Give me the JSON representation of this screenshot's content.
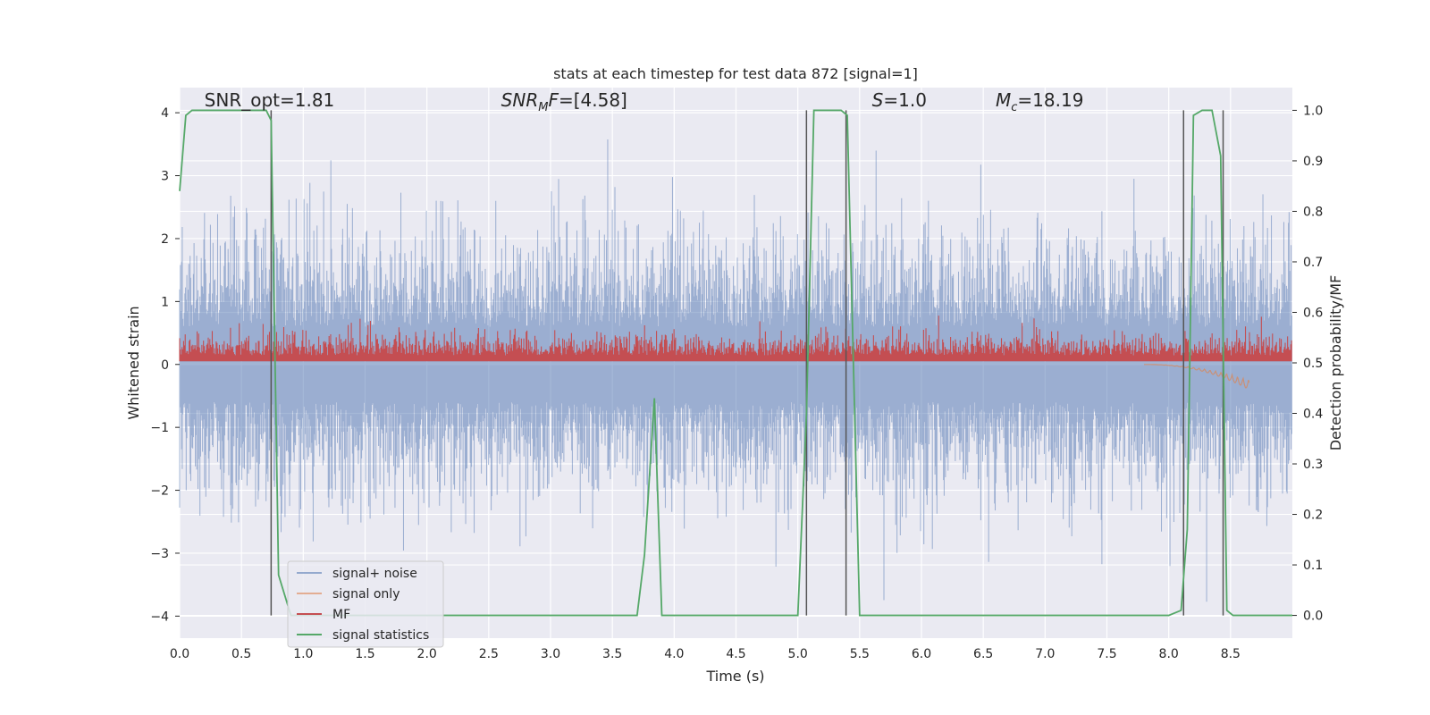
{
  "chart_data": {
    "type": "line",
    "title": "stats at each timestep for test data 872 [signal=1]",
    "xlabel": "Time (s)",
    "ylabel": "Whitened strain",
    "y2label": "Detection probability/MF",
    "xlim": [
      0,
      9.0
    ],
    "ylim": [
      -4.35,
      4.4
    ],
    "y2lim": [
      -0.045,
      1.045
    ],
    "xticks": [
      "0.0",
      "0.5",
      "1.0",
      "1.5",
      "2.0",
      "2.5",
      "3.0",
      "3.5",
      "4.0",
      "4.5",
      "5.0",
      "5.5",
      "6.0",
      "6.5",
      "7.0",
      "7.5",
      "8.0",
      "8.5"
    ],
    "yticks": [
      "4",
      "3",
      "2",
      "1",
      "0",
      "−1",
      "−2",
      "−3",
      "−4"
    ],
    "y2ticks": [
      "1.0",
      "0.9",
      "0.8",
      "0.7",
      "0.6",
      "0.5",
      "0.4",
      "0.3",
      "0.2",
      "0.1",
      "0.0"
    ],
    "grid": true,
    "legend_position": "lower-left",
    "annotations": [
      {
        "pre": "SNR_opt=1.81",
        "sub": "",
        "post": "",
        "x": 0.2,
        "y": 4.1
      },
      {
        "pre": "SNR",
        "sub": "M",
        "post": "F=[4.58]",
        "x": 2.6,
        "y": 4.1
      },
      {
        "pre": "S",
        "sub": "",
        "post": "=1.0",
        "x": 5.6,
        "y": 4.1
      },
      {
        "pre": "M",
        "sub": "c",
        "post": "=18.19",
        "x": 6.6,
        "y": 4.1
      }
    ],
    "series": [
      {
        "name": "signal+ noise",
        "color": "#4c72b0",
        "kind": "noise",
        "amplitude": 1.3
      },
      {
        "name": "signal only",
        "color": "#dd8452",
        "kind": "chirp",
        "x_start": 7.8,
        "x_end": 8.65,
        "y_end": -0.4
      },
      {
        "name": "MF",
        "color": "#c44e52",
        "kind": "mf",
        "baseline": 0.5,
        "amplitude": 0.06
      },
      {
        "name": "signal statistics",
        "color": "#55a868",
        "kind": "prob",
        "x": [
          0.0,
          0.05,
          0.1,
          0.2,
          0.3,
          0.5,
          0.7,
          0.74,
          0.8,
          0.9,
          3.5,
          3.7,
          3.76,
          3.84,
          3.9,
          5.0,
          5.07,
          5.13,
          5.35,
          5.4,
          5.5,
          7.9,
          8.0,
          8.1,
          8.15,
          8.2,
          8.27,
          8.35,
          8.42,
          8.47,
          8.52,
          9.0
        ],
        "y2": [
          0.84,
          0.99,
          1.0,
          1.0,
          1.0,
          1.0,
          1.0,
          0.98,
          0.08,
          0.0,
          0.0,
          0.0,
          0.12,
          0.43,
          0.0,
          0.0,
          0.4,
          1.0,
          1.0,
          0.99,
          0.0,
          0.0,
          0.0,
          0.01,
          0.17,
          0.99,
          1.0,
          1.0,
          0.91,
          0.01,
          0.0,
          0.0
        ]
      },
      {
        "name": "",
        "color": "#555555",
        "kind": "vlines",
        "x": [
          0.74,
          5.07,
          5.39,
          8.12,
          8.44
        ],
        "y2_min": 0.0,
        "y2_max": 1.0
      }
    ]
  }
}
